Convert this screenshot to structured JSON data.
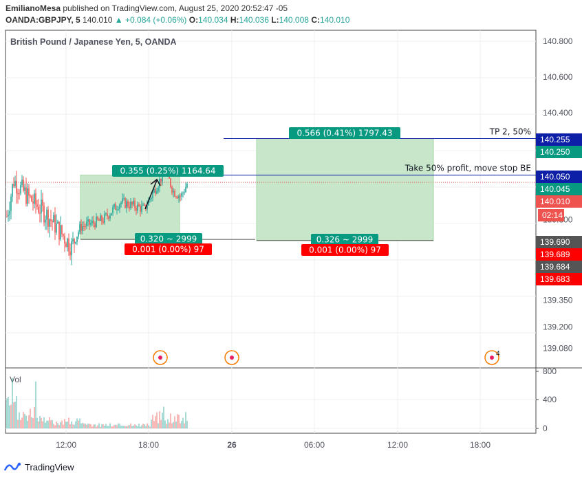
{
  "header": {
    "author": "EmilianoMesa",
    "published": "published on TradingView.com, August 25, 2020 20:52:47 -05",
    "symbol": "OANDA:GBPJPY, 5",
    "last": "140.010",
    "change": "+0.084 (+0.06%)",
    "o_label": "O:",
    "o_value": "140.034",
    "h_label": "H:",
    "h_value": "140.036",
    "l_label": "L:",
    "l_value": "140.008",
    "c_label": "C:",
    "c_value": "140.010"
  },
  "chart_data": {
    "type": "candlestick",
    "title": "British Pound / Japanese Yen, 5, OANDA",
    "price_ticks": [
      "140.800",
      "140.600",
      "140.400",
      "140.255",
      "140.250",
      "140.050",
      "140.045",
      "140.010",
      "139.800",
      "139.690",
      "139.689",
      "139.684",
      "139.683",
      "139.350",
      "139.200",
      "139.080"
    ],
    "price_axis": [
      {
        "price": 140.8,
        "label": "140.800"
      },
      {
        "price": 140.6,
        "label": "140.600"
      },
      {
        "price": 140.4,
        "label": "140.400"
      },
      {
        "price": 139.8,
        "label": "139.800"
      },
      {
        "price": 139.35,
        "label": "139.350"
      },
      {
        "price": 139.2,
        "label": "139.200"
      },
      {
        "price": 139.08,
        "label": "139.080"
      }
    ],
    "time_ticks": [
      "12:00",
      "18:00",
      "26",
      "06:00",
      "12:00",
      "18:00"
    ],
    "volume_label": "Vol",
    "volume_ticks": [
      "800",
      "400",
      "0"
    ],
    "price_tags": [
      {
        "label": "140.255",
        "color": "#0c1fa6"
      },
      {
        "label": "140.250",
        "color": "#089981"
      },
      {
        "label": "140.050",
        "color": "#0c1fa6"
      },
      {
        "label": "140.045",
        "color": "#089981"
      },
      {
        "label": "140.010",
        "color": "#ef5350"
      },
      {
        "label": "02:14",
        "color": "#ef5350"
      },
      {
        "label": "139.690",
        "color": "#555555"
      },
      {
        "label": "139.689",
        "color": "#ff0000"
      },
      {
        "label": "139.684",
        "color": "#555555"
      },
      {
        "label": "139.683",
        "color": "#ff0000"
      }
    ],
    "positions": [
      {
        "target_label": "0.355 (0.25%) 1164.64",
        "entry_label": "0.320 ~ 2999",
        "stop_label": "0.001 (0.00%) 97"
      },
      {
        "target_label": "0.566 (0.41%) 1797.43",
        "entry_label": "0.326 ~ 2999",
        "stop_label": "0.001 (0.00%) 97"
      }
    ],
    "lines": [
      {
        "price": 140.255,
        "label": "TP 2, 50%"
      },
      {
        "price": 140.05,
        "label": "Take 50% profit, move stop BE"
      }
    ],
    "event_badge": "4",
    "colors": {
      "up": "#26a69a",
      "down": "#ef5350",
      "zone": "#c8e6c9",
      "tag_green": "#089981",
      "tag_red": "#ff0000"
    }
  },
  "footer": {
    "brand": "TradingView"
  }
}
